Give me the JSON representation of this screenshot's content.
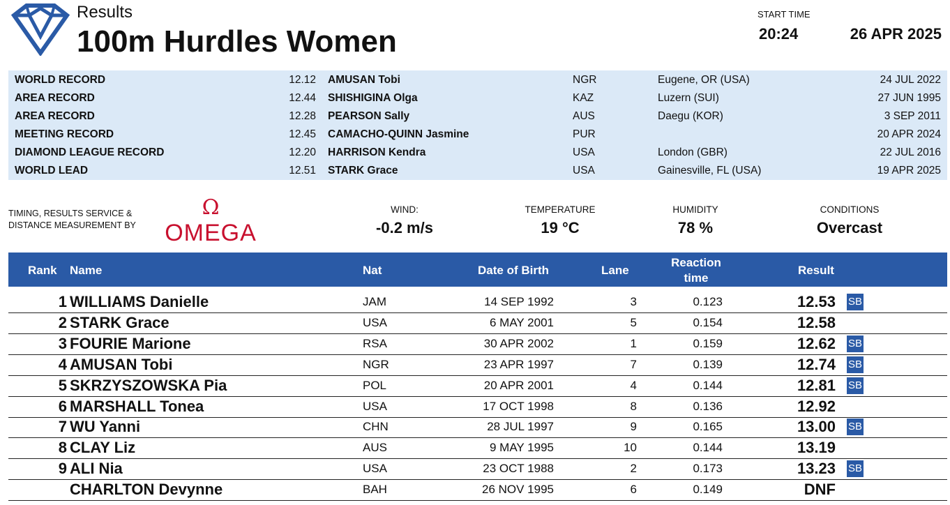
{
  "header": {
    "results_label": "Results",
    "event_title": "100m Hurdles Women",
    "start_time_label": "START TIME",
    "start_time": "20:24",
    "date": "26 APR 2025"
  },
  "records": [
    {
      "type": "WORLD RECORD",
      "time": "12.12",
      "athlete": "AMUSAN Tobi",
      "nat": "NGR",
      "venue": "Eugene, OR (USA)",
      "date": "24 JUL 2022"
    },
    {
      "type": "AREA RECORD",
      "time": "12.44",
      "athlete": "SHISHIGINA Olga",
      "nat": "KAZ",
      "venue": "Luzern (SUI)",
      "date": "27 JUN 1995"
    },
    {
      "type": "AREA RECORD",
      "time": "12.28",
      "athlete": "PEARSON Sally",
      "nat": "AUS",
      "venue": "Daegu (KOR)",
      "date": "3 SEP 2011"
    },
    {
      "type": "MEETING RECORD",
      "time": "12.45",
      "athlete": "CAMACHO-QUINN Jasmine",
      "nat": "PUR",
      "venue": "",
      "date": "20 APR 2024"
    },
    {
      "type": "DIAMOND LEAGUE RECORD",
      "time": "12.20",
      "athlete": "HARRISON Kendra",
      "nat": "USA",
      "venue": "London (GBR)",
      "date": "22 JUL 2016"
    },
    {
      "type": "WORLD LEAD",
      "time": "12.51",
      "athlete": "STARK Grace",
      "nat": "USA",
      "venue": "Gainesville, FL (USA)",
      "date": "19 APR 2025"
    }
  ],
  "info": {
    "timing_by": "TIMING, RESULTS SERVICE & DISTANCE MEASUREMENT BY",
    "omega_text": "OMEGA",
    "wind_label": "WIND:",
    "wind_value": "-0.2 m/s",
    "temperature_label": "TEMPERATURE",
    "temperature_value": "19 °C",
    "humidity_label": "HUMIDITY",
    "humidity_value": "78 %",
    "conditions_label": "CONDITIONS",
    "conditions_value": "Overcast"
  },
  "table": {
    "columns": {
      "rank": "Rank",
      "name": "Name",
      "nat": "Nat",
      "dob": "Date of Birth",
      "lane": "Lane",
      "reaction_1": "Reaction",
      "reaction_2": "time",
      "result": "Result"
    },
    "rows": [
      {
        "rank": "1",
        "name": "WILLIAMS Danielle",
        "nat": "JAM",
        "dob": "14 SEP 1992",
        "lane": "3",
        "reaction": "0.123",
        "result": "12.53",
        "badge": "SB"
      },
      {
        "rank": "2",
        "name": "STARK Grace",
        "nat": "USA",
        "dob": "6 MAY 2001",
        "lane": "5",
        "reaction": "0.154",
        "result": "12.58",
        "badge": ""
      },
      {
        "rank": "3",
        "name": "FOURIE Marione",
        "nat": "RSA",
        "dob": "30 APR 2002",
        "lane": "1",
        "reaction": "0.159",
        "result": "12.62",
        "badge": "SB"
      },
      {
        "rank": "4",
        "name": "AMUSAN Tobi",
        "nat": "NGR",
        "dob": "23 APR 1997",
        "lane": "7",
        "reaction": "0.139",
        "result": "12.74",
        "badge": "SB"
      },
      {
        "rank": "5",
        "name": "SKRZYSZOWSKA Pia",
        "nat": "POL",
        "dob": "20 APR 2001",
        "lane": "4",
        "reaction": "0.144",
        "result": "12.81",
        "badge": "SB"
      },
      {
        "rank": "6",
        "name": "MARSHALL Tonea",
        "nat": "USA",
        "dob": "17 OCT 1998",
        "lane": "8",
        "reaction": "0.136",
        "result": "12.92",
        "badge": ""
      },
      {
        "rank": "7",
        "name": "WU Yanni",
        "nat": "CHN",
        "dob": "28 JUL 1997",
        "lane": "9",
        "reaction": "0.165",
        "result": "13.00",
        "badge": "SB"
      },
      {
        "rank": "8",
        "name": "CLAY Liz",
        "nat": "AUS",
        "dob": "9 MAY 1995",
        "lane": "10",
        "reaction": "0.144",
        "result": "13.19",
        "badge": ""
      },
      {
        "rank": "9",
        "name": "ALI Nia",
        "nat": "USA",
        "dob": "23 OCT 1988",
        "lane": "2",
        "reaction": "0.173",
        "result": "13.23",
        "badge": "SB"
      },
      {
        "rank": "",
        "name": "CHARLTON Devynne",
        "nat": "BAH",
        "dob": "26 NOV 1995",
        "lane": "6",
        "reaction": "0.149",
        "result": "DNF",
        "badge": ""
      }
    ]
  },
  "colors": {
    "header_blue": "#2a5aa6",
    "records_bg": "#dbe9f7",
    "omega_red": "#c8102e"
  },
  "icons": {
    "brand_logo": "diamond-league-logo",
    "timing_logo": "omega-logo"
  }
}
